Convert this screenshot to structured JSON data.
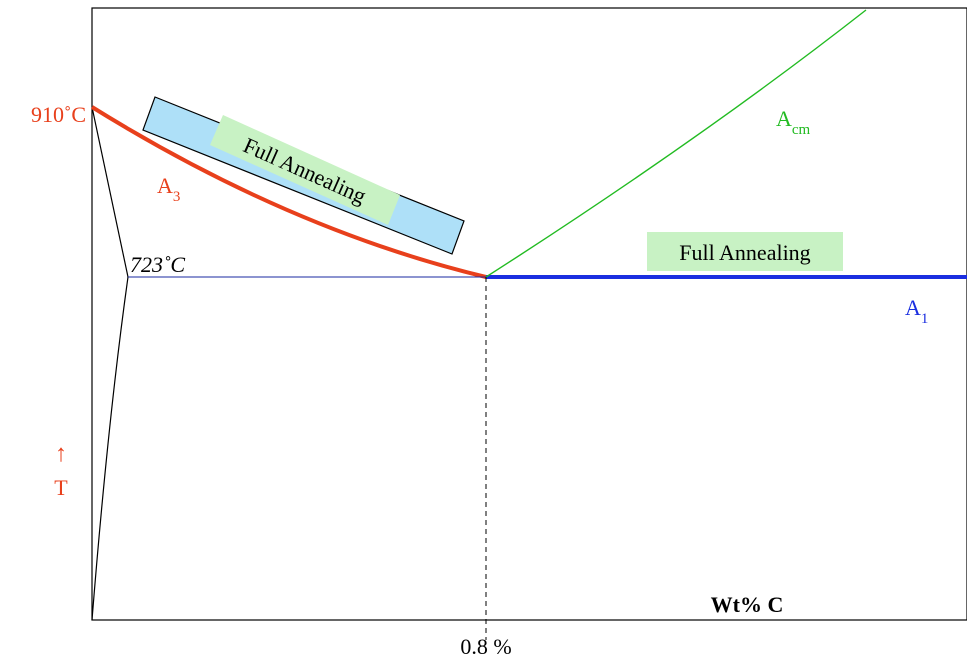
{
  "diagram": {
    "x_axis_label": "Wt% C",
    "y_axis_arrow": "↑",
    "y_axis_symbol": "T",
    "temp_910": "910˚C",
    "temp_723": "723˚C",
    "eutectoid_composition": "0.8 %",
    "a3": {
      "base": "A",
      "sub": "3"
    },
    "acm": {
      "base": "A",
      "sub": "cm"
    },
    "a1": {
      "base": "A",
      "sub": "1"
    },
    "zone_hypo_label": "Full Annealing",
    "zone_hyper_label": "Full Annealing",
    "colors": {
      "a3_line": "#e8401c",
      "acm_line": "#22bb22",
      "a1_line": "#1a2ee0",
      "eutectoid_line": "#1a2aa0",
      "zone_hypo_fill": "#aee0f8",
      "zone_label_fill": "#c8f2c4",
      "red_text": "#e8401c",
      "blue_text": "#1a2ee0",
      "green_text": "#22bb22"
    }
  }
}
